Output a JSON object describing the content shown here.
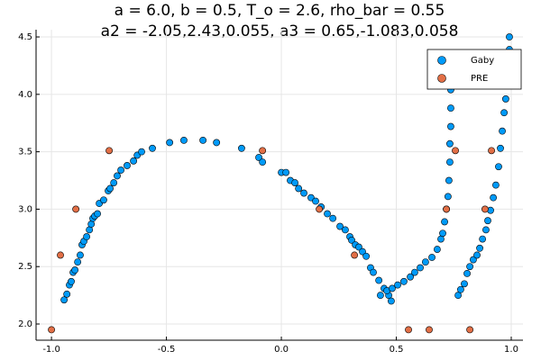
{
  "chart_data": {
    "type": "scatter",
    "title": [
      "a = 6.0, b = 0.5, T_o = 2.6, rho_bar = 0.55",
      "a2 = -2.05,2.43,0.055, a3 = 0.65,-1.083,0.058"
    ],
    "xlim": [
      -1.067,
      1.051
    ],
    "ylim": [
      1.859,
      4.563
    ],
    "xticks": [
      {
        "value": -1,
        "label": "-1.0"
      },
      -0.5,
      {
        "value": 0,
        "label": "0.0"
      },
      0.5,
      {
        "value": 1,
        "label": "1.0"
      }
    ],
    "yticks": [
      {
        "value": 2,
        "label": "2.0"
      },
      2.5,
      {
        "value": 3,
        "label": "3.0"
      },
      3.5,
      {
        "value": 4,
        "label": "4.0"
      },
      4.5
    ],
    "grid": true,
    "legend": "top-right",
    "series": [
      {
        "name": "Gaby",
        "color": "#009af9",
        "x": [
          -0.945,
          -0.933,
          -0.922,
          -0.914,
          -0.906,
          -0.898,
          -0.886,
          -0.875,
          -0.867,
          -0.859,
          -0.847,
          -0.835,
          -0.827,
          -0.82,
          -0.812,
          -0.8,
          -0.792,
          -0.773,
          -0.753,
          -0.745,
          -0.729,
          -0.714,
          -0.698,
          -0.671,
          -0.643,
          -0.627,
          -0.608,
          -0.561,
          -0.486,
          -0.424,
          -0.341,
          -0.282,
          -0.173,
          -0.098,
          -0.082,
          0,
          0.02,
          0.039,
          0.059,
          0.075,
          0.098,
          0.129,
          0.149,
          0.173,
          0.2,
          0.224,
          0.255,
          0.278,
          0.298,
          0.306,
          0.322,
          0.337,
          0.353,
          0.369,
          0.388,
          0.4,
          0.424,
          0.447,
          0.467,
          0.478,
          0.431,
          0.459,
          0.482,
          0.506,
          0.533,
          0.561,
          0.58,
          0.604,
          0.627,
          0.655,
          0.678,
          0.694,
          0.702,
          0.71,
          0.718,
          0.725,
          0.729,
          0.733,
          0.733,
          0.737,
          0.737,
          0.737,
          0.741,
          0.769,
          0.78,
          0.796,
          0.808,
          0.82,
          0.835,
          0.851,
          0.863,
          0.875,
          0.89,
          0.898,
          0.91,
          0.922,
          0.933,
          0.945,
          0.953,
          0.961,
          0.969,
          0.976,
          0.984,
          0.988,
          0.992,
          0.992
        ],
        "values": [
          2.21,
          2.26,
          2.34,
          2.37,
          2.45,
          2.47,
          2.54,
          2.6,
          2.69,
          2.72,
          2.76,
          2.82,
          2.87,
          2.92,
          2.94,
          2.96,
          3.05,
          3.08,
          3.16,
          3.18,
          3.23,
          3.29,
          3.34,
          3.38,
          3.42,
          3.47,
          3.5,
          3.53,
          3.58,
          3.6,
          3.6,
          3.58,
          3.53,
          3.45,
          3.41,
          3.32,
          3.32,
          3.25,
          3.23,
          3.18,
          3.14,
          3.1,
          3.07,
          3.02,
          2.96,
          2.92,
          2.85,
          2.82,
          2.76,
          2.73,
          2.69,
          2.67,
          2.63,
          2.59,
          2.49,
          2.45,
          2.38,
          2.31,
          2.25,
          2.2,
          2.25,
          2.29,
          2.31,
          2.34,
          2.37,
          2.41,
          2.45,
          2.49,
          2.54,
          2.58,
          2.65,
          2.74,
          2.79,
          2.89,
          3.0,
          3.11,
          3.25,
          3.41,
          3.57,
          3.72,
          3.88,
          4.04,
          4.27,
          2.25,
          2.3,
          2.35,
          2.44,
          2.5,
          2.56,
          2.6,
          2.66,
          2.74,
          2.82,
          2.9,
          2.99,
          3.1,
          3.21,
          3.37,
          3.53,
          3.68,
          3.84,
          3.96,
          4.08,
          4.27,
          4.39,
          4.5
        ]
      },
      {
        "name": "PRE",
        "color": "#e26f46",
        "x": [
          -1.0,
          -0.961,
          -0.894,
          -0.749,
          -0.082,
          0.165,
          0.318,
          0.553,
          0.643,
          0.718,
          0.757,
          0.82,
          0.886,
          0.914
        ],
        "values": [
          1.95,
          2.6,
          3.0,
          3.51,
          3.51,
          3.0,
          2.6,
          1.95,
          1.95,
          3.0,
          3.51,
          1.95,
          3.0,
          3.51
        ]
      }
    ]
  }
}
